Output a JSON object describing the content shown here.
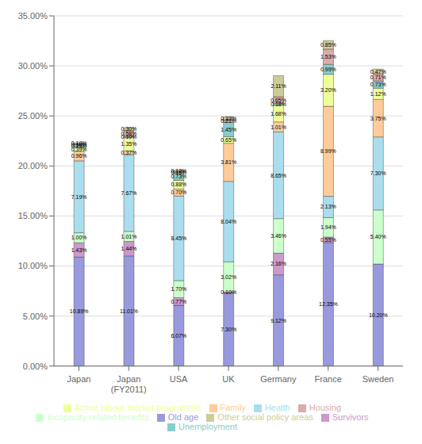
{
  "chart_data": {
    "type": "bar",
    "stacked": true,
    "data_labels": true,
    "grid": true,
    "legend": "bottom",
    "categories": [
      "Japan",
      "Japan\n(FY2011)",
      "USA",
      "UK",
      "Germany",
      "France",
      "Sweden"
    ],
    "ylim": [
      0,
      35
    ],
    "yticks": [
      {
        "value": 0,
        "label": "0.00%"
      },
      {
        "value": 5,
        "label": "5.00%"
      },
      {
        "value": 10,
        "label": "10.00%"
      },
      {
        "value": 15,
        "label": "15.00%"
      },
      {
        "value": 20,
        "label": "20.00%"
      },
      {
        "value": 25,
        "label": "25.00%"
      },
      {
        "value": 30,
        "label": "30.00%"
      },
      {
        "value": 35,
        "label": "35.00%"
      }
    ],
    "series": [
      {
        "name": "Old age",
        "color": "#9999dd",
        "values": [
          10.89,
          11.01,
          6.07,
          7.3,
          9.12,
          12.35,
          10.2
        ],
        "value_labels": [
          "10.89%",
          "11.01%",
          "6.07%",
          "7.30%",
          "9.12%",
          "12.35%",
          "10.20%"
        ]
      },
      {
        "name": "Survivors",
        "color": "#cc99cc",
        "values": [
          1.43,
          1.44,
          0.77,
          0.1,
          2.16,
          0.55,
          0.0
        ],
        "value_labels": [
          "1.43%",
          "1.44%",
          "0.77%",
          "0.10%",
          "2.16%",
          "0.55%",
          null
        ]
      },
      {
        "name": "Incapacity-related benefits",
        "color": "#ccffcc",
        "values": [
          1.0,
          1.01,
          1.7,
          3.02,
          3.46,
          1.94,
          5.4
        ],
        "value_labels": [
          "1.00%",
          "1.01%",
          "1.70%",
          "3.02%",
          "3.46%",
          "1.94%",
          "5.40%"
        ]
      },
      {
        "name": "Health",
        "color": "#aaddee",
        "values": [
          7.19,
          7.67,
          8.45,
          8.04,
          8.65,
          2.13,
          7.3
        ],
        "value_labels": [
          "7.19%",
          "7.67%",
          "8.45%",
          "8.04%",
          "8.65%",
          "2.13%",
          "7.30%"
        ]
      },
      {
        "name": "Family",
        "color": "#ffcc99",
        "values": [
          0.96,
          0.37,
          0.7,
          3.81,
          1.01,
          8.99,
          3.75
        ],
        "value_labels": [
          "0.96%",
          "0.37%",
          "0.70%",
          "3.81%",
          "1.01%",
          "8.99%",
          "3.75%"
        ]
      },
      {
        "name": "Active labour market programme",
        "color": "#eeff99",
        "values": [
          0.39,
          1.35,
          0.88,
          0.65,
          1.68,
          3.2,
          1.12
        ],
        "value_labels": [
          "0.39%",
          "1.35%",
          "0.88%",
          "0.65%",
          "1.68%",
          "3.20%",
          "1.12%"
        ]
      },
      {
        "name": "Unemployment",
        "color": "#88cccc",
        "values": [
          0.25,
          0.1,
          0.73,
          1.45,
          0.18,
          0.99,
          0.73
        ],
        "value_labels": [
          "0.25%",
          "0.10%",
          "0.73%",
          "1.45%",
          "0.18%",
          "0.99%",
          "0.73%"
        ]
      },
      {
        "name": "Housing",
        "color": "#ddaaaa",
        "values": [
          0.1,
          0.58,
          0.15,
          0.21,
          0.65,
          1.53,
          0.71
        ],
        "value_labels": [
          "0.10%",
          "0.58%",
          "0.15%",
          "0.21%",
          "0.65%",
          "1.53%",
          "0.71%"
        ]
      },
      {
        "name": "Other social policy areas",
        "color": "#cccc99",
        "values": [
          0.1,
          0.3,
          0.12,
          0.33,
          2.11,
          0.85,
          0.47
        ],
        "value_labels": [
          "0.10%",
          "0.30%",
          "0.12%",
          "0.33%",
          "2.11%",
          "0.85%",
          "0.47%"
        ]
      }
    ]
  }
}
